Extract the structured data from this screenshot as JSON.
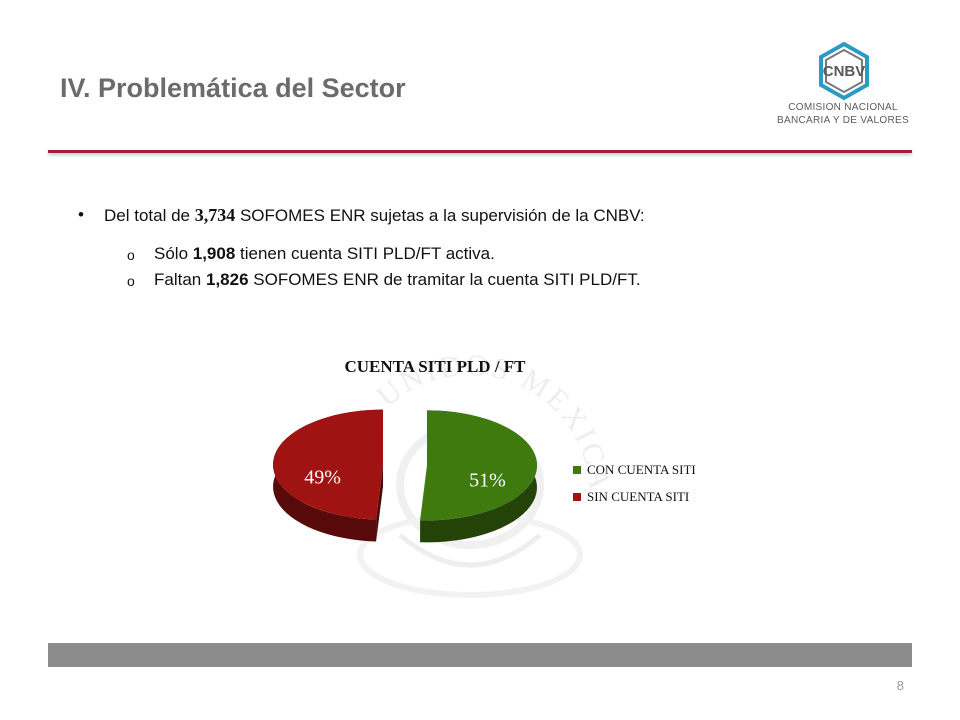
{
  "slide": {
    "title": "IV. Problemática del Sector",
    "page_number": "8"
  },
  "logo": {
    "abbr": "CNBV",
    "line1": "COMISION NACIONAL",
    "line2": "BANCARIA Y DE VALORES"
  },
  "bullets": {
    "main_prefix": "Del total de ",
    "main_number": "3,734",
    "main_suffix": " SOFOMES ENR sujetas a la supervisión de la CNBV:",
    "sub": [
      {
        "marker": "o",
        "prefix": "Sólo ",
        "number": "1,908",
        "suffix": " tienen cuenta SITI PLD/FT activa."
      },
      {
        "marker": "o",
        "prefix": "Faltan ",
        "number": "1,826",
        "suffix": " SOFOMES ENR de tramitar la cuenta SITI PLD/FT."
      }
    ]
  },
  "watermark": {
    "text": "ESTADOS UNIDOS MEXICANOS"
  },
  "chart_data": {
    "type": "pie",
    "title": "CUENTA SITI PLD / FT",
    "categories": [
      "CON CUENTA SITI",
      "SIN CUENTA SITI"
    ],
    "values": [
      51,
      49
    ],
    "labels": [
      "51%",
      "49%"
    ],
    "colors": [
      "#3f7a0f",
      "#a01313"
    ],
    "legend": "right"
  }
}
